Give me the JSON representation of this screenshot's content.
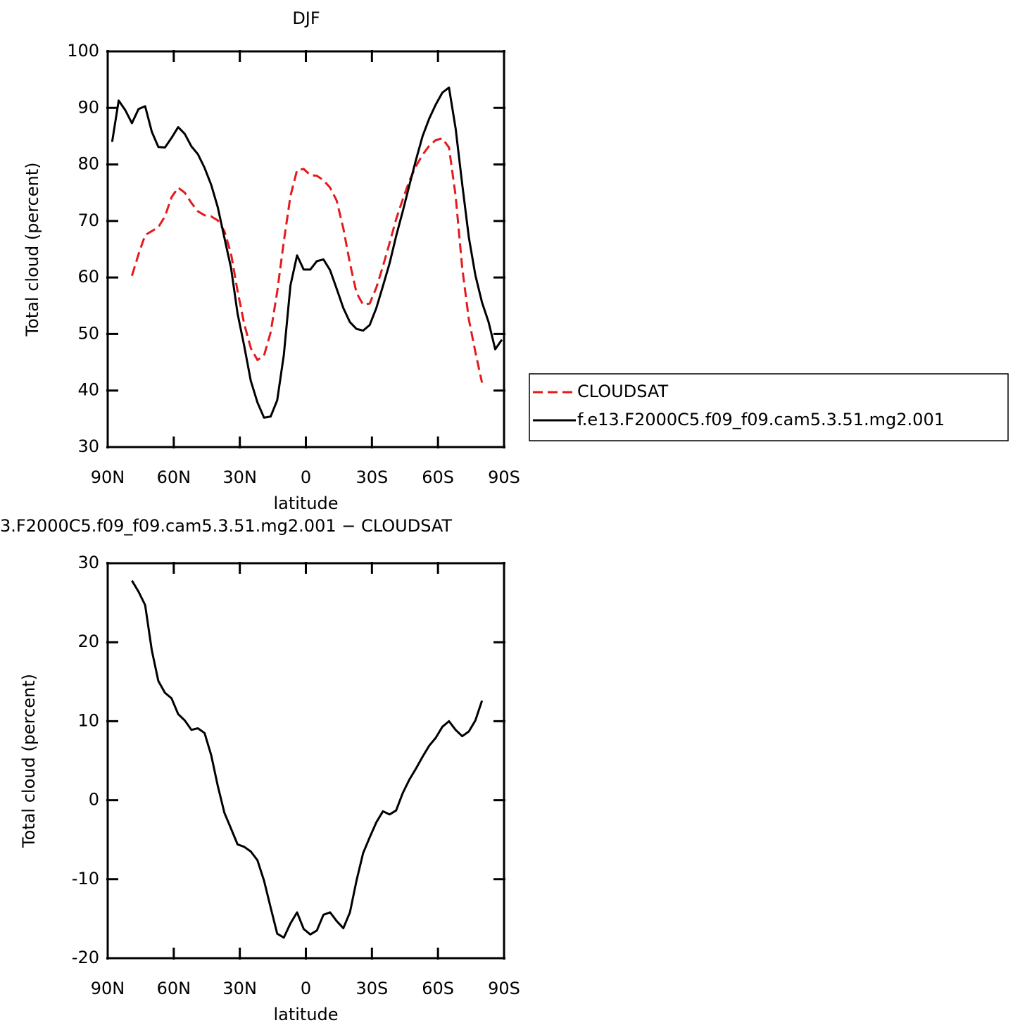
{
  "chart_data": [
    {
      "type": "line",
      "title": "DJF",
      "xlabel": "latitude",
      "ylabel": "Total cloud (percent)",
      "x": [
        88,
        85,
        82,
        79,
        76,
        73,
        70,
        67,
        64,
        61,
        58,
        55,
        52,
        49,
        46,
        43,
        40,
        37,
        34,
        31,
        28,
        25,
        22,
        19,
        16,
        13,
        10,
        7,
        4,
        1,
        -2,
        -5,
        -8,
        -11,
        -14,
        -17,
        -20,
        -23,
        -26,
        -29,
        -32,
        -35,
        -38,
        -41,
        -44,
        -47,
        -50,
        -53,
        -56,
        -59,
        -62,
        -65,
        -68,
        -71,
        -74,
        -77,
        -80,
        -83,
        -86,
        -89
      ],
      "series": [
        {
          "name": "CLOUDSAT",
          "color": "#e41a1c",
          "dashed": true,
          "values": [
            null,
            null,
            null,
            60.3,
            64.1,
            67.5,
            68.2,
            68.9,
            70.8,
            74.2,
            75.9,
            75.0,
            73.2,
            71.7,
            71.0,
            70.8,
            70.1,
            68.2,
            64.2,
            57.6,
            51.8,
            47.5,
            45.4,
            46.2,
            50.3,
            57.5,
            66.4,
            74.4,
            79.0,
            79.2,
            78.1,
            78.0,
            77.2,
            75.9,
            73.6,
            68.7,
            62.5,
            57.3,
            55.2,
            55.4,
            58.2,
            62.0,
            66.1,
            70.3,
            73.8,
            77.1,
            79.7,
            81.7,
            83.3,
            84.3,
            84.6,
            83.0,
            74.5,
            61.7,
            52.6,
            46.8,
            41.4,
            null,
            null,
            null
          ]
        },
        {
          "name": "f.e13.F2000C5.f09_f09.cam5.3.51.mg2.001",
          "color": "#000000",
          "dashed": false,
          "values": [
            84.0,
            91.3,
            89.6,
            87.3,
            89.8,
            90.3,
            85.8,
            83.1,
            83.0,
            84.7,
            86.6,
            85.4,
            83.2,
            81.8,
            79.4,
            76.4,
            72.4,
            67.0,
            61.7,
            53.6,
            47.9,
            41.7,
            37.9,
            35.2,
            35.4,
            38.3,
            46.3,
            58.6,
            63.9,
            61.4,
            61.4,
            62.9,
            63.2,
            61.3,
            58.0,
            54.6,
            52.1,
            50.9,
            50.6,
            51.6,
            54.6,
            58.5,
            62.5,
            67.3,
            71.7,
            76.3,
            80.8,
            85.0,
            88.1,
            90.6,
            92.7,
            93.6,
            86.4,
            76.5,
            67.1,
            60.4,
            55.6,
            52.1,
            47.3,
            49.0
          ]
        }
      ],
      "xlim": [
        90,
        -90
      ],
      "xticks": [
        {
          "value": 90,
          "label": "90N"
        },
        {
          "value": 60,
          "label": "60N"
        },
        {
          "value": 30,
          "label": "30N"
        },
        0,
        {
          "value": -30,
          "label": "30S"
        },
        {
          "value": -60,
          "label": "60S"
        },
        {
          "value": -90,
          "label": "90S"
        }
      ],
      "ylim": [
        30,
        100
      ],
      "yticks": [
        30,
        40,
        50,
        60,
        70,
        80,
        90,
        100
      ],
      "legend": "right"
    },
    {
      "type": "line",
      "title": "3.F2000C5.f09_f09.cam5.3.51.mg2.001 − CLOUDSAT",
      "xlabel": "latitude",
      "ylabel": "Total cloud (percent)",
      "x": [
        79,
        76,
        73,
        70,
        67,
        64,
        61,
        58,
        55,
        52,
        49,
        46,
        43,
        40,
        37,
        34,
        31,
        28,
        25,
        22,
        19,
        16,
        13,
        10,
        7,
        4,
        1,
        -2,
        -5,
        -8,
        -11,
        -14,
        -17,
        -20,
        -23,
        -26,
        -29,
        -32,
        -35,
        -38,
        -41,
        -44,
        -47,
        -50,
        -53,
        -56,
        -59,
        -62,
        -65,
        -68,
        -71,
        -74,
        -77,
        -80
      ],
      "series": [
        {
          "color": "#000000",
          "dashed": false,
          "values": [
            27.8,
            26.4,
            24.7,
            19.0,
            15.1,
            13.6,
            12.9,
            10.9,
            10.1,
            8.9,
            9.1,
            8.5,
            5.7,
            1.8,
            -1.6,
            -3.6,
            -5.6,
            -5.9,
            -6.5,
            -7.6,
            -10.2,
            -13.6,
            -16.9,
            -17.4,
            -15.6,
            -14.2,
            -16.3,
            -17.0,
            -16.5,
            -14.5,
            -14.2,
            -15.3,
            -16.2,
            -14.2,
            -10.2,
            -6.7,
            -4.7,
            -2.8,
            -1.4,
            -1.8,
            -1.3,
            0.9,
            2.6,
            4.0,
            5.5,
            6.9,
            7.9,
            9.3,
            10.0,
            8.9,
            8.1,
            8.7,
            10.1,
            12.6
          ]
        }
      ],
      "xlim": [
        90,
        -90
      ],
      "xticks": [
        {
          "value": 90,
          "label": "90N"
        },
        {
          "value": 60,
          "label": "60N"
        },
        {
          "value": 30,
          "label": "30N"
        },
        0,
        {
          "value": -30,
          "label": "30S"
        },
        {
          "value": -60,
          "label": "60S"
        },
        {
          "value": -90,
          "label": "90S"
        }
      ],
      "ylim": [
        -20,
        30
      ],
      "yticks": [
        -20,
        -10,
        0,
        10,
        20,
        30
      ]
    }
  ]
}
